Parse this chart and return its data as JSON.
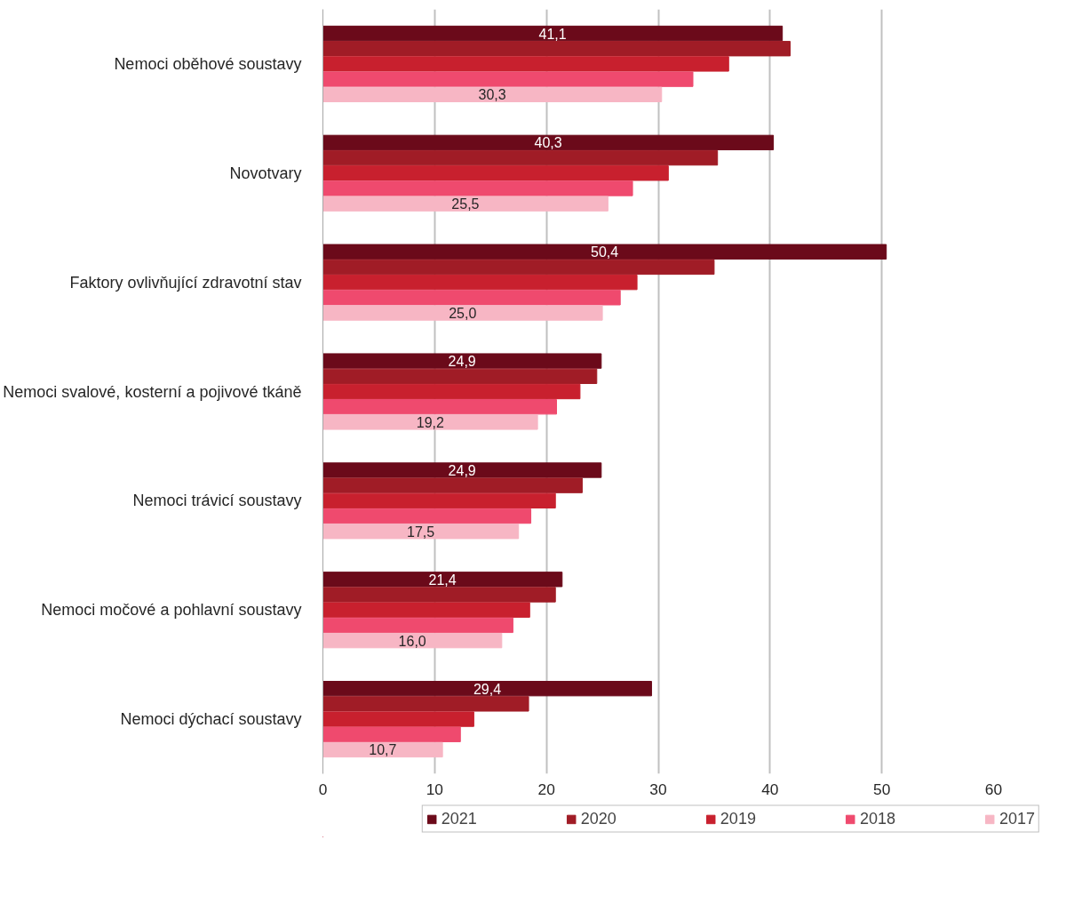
{
  "chart_data": {
    "type": "bar",
    "orientation": "horizontal",
    "categories": [
      "Nemoci oběhové soustavy",
      "Novotvary",
      "Faktory ovlivňující zdravotní stav",
      "Nemoci svalové, kosterní a pojivové tkáně",
      "Nemoci trávicí soustavy",
      "Nemoci močové a pohlavní soustavy",
      "Nemoci dýchací soustavy"
    ],
    "series": [
      {
        "name": "2021",
        "color": "#6b0a1a",
        "values": [
          41.1,
          40.3,
          50.4,
          24.9,
          24.9,
          21.4,
          29.4
        ],
        "value_labels": [
          "41,1",
          "40,3",
          "50,4",
          "24,9",
          "24,9",
          "21,4",
          "29,4"
        ]
      },
      {
        "name": "2020",
        "color": "#a01c26",
        "values": [
          41.8,
          35.3,
          35.0,
          24.5,
          23.2,
          20.8,
          18.4
        ]
      },
      {
        "name": "2019",
        "color": "#c8202e",
        "values": [
          36.3,
          30.9,
          28.1,
          23.0,
          20.8,
          18.5,
          13.5
        ]
      },
      {
        "name": "2018",
        "color": "#ef4a6e",
        "values": [
          33.1,
          27.7,
          26.6,
          20.9,
          18.6,
          17.0,
          12.3
        ]
      },
      {
        "name": "2017",
        "color": "#f7b6c4",
        "values": [
          30.3,
          25.5,
          25.0,
          19.2,
          17.5,
          16.0,
          10.7
        ],
        "value_labels": [
          "30,3",
          "25,5",
          "25,0",
          "19,2",
          "17,5",
          "16,0",
          "10,7"
        ]
      }
    ],
    "xlim": [
      0,
      60
    ],
    "xticks": [
      0,
      10,
      20,
      30,
      40,
      50,
      60
    ],
    "grid": "x",
    "legend": "bottom"
  }
}
